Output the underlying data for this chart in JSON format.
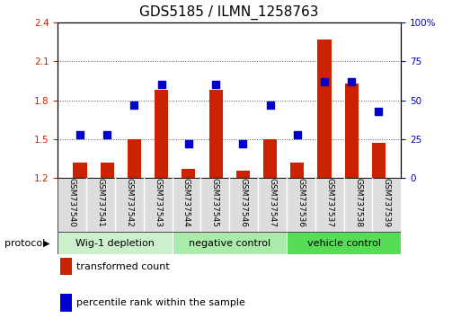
{
  "title": "GDS5185 / ILMN_1258763",
  "samples": [
    "GSM737540",
    "GSM737541",
    "GSM737542",
    "GSM737543",
    "GSM737544",
    "GSM737545",
    "GSM737546",
    "GSM737547",
    "GSM737536",
    "GSM737537",
    "GSM737538",
    "GSM737539"
  ],
  "transformed_count": [
    1.32,
    1.32,
    1.5,
    1.88,
    1.27,
    1.88,
    1.26,
    1.5,
    1.32,
    2.27,
    1.93,
    1.47
  ],
  "percentile_rank": [
    28,
    28,
    47,
    60,
    22,
    60,
    22,
    47,
    28,
    62,
    62,
    43
  ],
  "groups": [
    {
      "label": "Wig-1 depletion",
      "start": 0,
      "end": 3,
      "color": "#ccf0cc"
    },
    {
      "label": "negative control",
      "start": 4,
      "end": 7,
      "color": "#aaeaaa"
    },
    {
      "label": "vehicle control",
      "start": 8,
      "end": 11,
      "color": "#55dd55"
    }
  ],
  "ylim_left": [
    1.2,
    2.4
  ],
  "ylim_right": [
    0,
    100
  ],
  "yticks_left": [
    1.2,
    1.5,
    1.8,
    2.1,
    2.4
  ],
  "yticks_right": [
    0,
    25,
    50,
    75,
    100
  ],
  "bar_color": "#cc2200",
  "dot_color": "#0000cc",
  "bar_width": 0.5,
  "dot_size": 40,
  "bg_color": "#ffffff",
  "plot_bg": "#ffffff",
  "legend_labels": [
    "transformed count",
    "percentile rank within the sample"
  ],
  "protocol_label": "protocol",
  "sample_box_color": "#cccccc",
  "title_fontsize": 11,
  "tick_fontsize": 7.5,
  "label_fontsize": 8
}
